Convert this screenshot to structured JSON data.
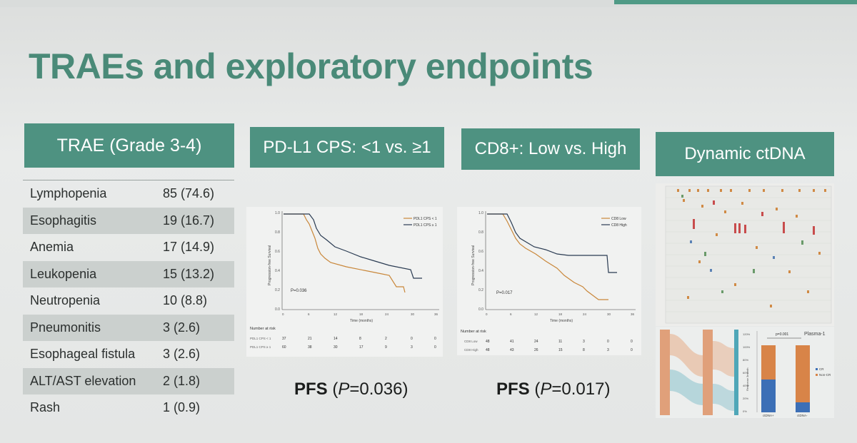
{
  "slide": {
    "title": "TRAEs and exploratory endpoints"
  },
  "headers": {
    "trae": "TRAE (Grade 3-4)",
    "pdl1": "PD-L1 CPS: <1 vs. ≥1",
    "cd8": "CD8+: Low vs. High",
    "ctdna": "Dynamic ctDNA"
  },
  "trae_rows": [
    {
      "name": "Lymphopenia",
      "value": "85 (74.6)"
    },
    {
      "name": "Esophagitis",
      "value": "19 (16.7)"
    },
    {
      "name": "Anemia",
      "value": "17 (14.9)"
    },
    {
      "name": "Leukopenia",
      "value": "15 (13.2)"
    },
    {
      "name": "Neutropenia",
      "value": "10 (8.8)"
    },
    {
      "name": "Pneumonitis",
      "value": "3 (2.6)"
    },
    {
      "name": "Esophageal fistula",
      "value": "3 (2.6)"
    },
    {
      "name": "ALT/AST elevation",
      "value": "2 (1.8)"
    },
    {
      "name": "Rash",
      "value": "1 (0.9)"
    }
  ],
  "km_pdl1": {
    "ylabel": "Progression-free Survival",
    "xlabel": "Time (months)",
    "pvalue": "P=0.036",
    "legend": [
      "PDL1 CPS < 1",
      "PDL1 CPS ≥ 1"
    ],
    "risk_label": "Number at risk",
    "risk_rows": [
      {
        "name": "PDL1 CPS < 1",
        "values": [
          "37",
          "21",
          "14",
          "8",
          "2",
          "0",
          "0"
        ]
      },
      {
        "name": "PDL1 CPS ≥ 1",
        "values": [
          "60",
          "38",
          "30",
          "17",
          "9",
          "3",
          "0"
        ]
      }
    ],
    "xticks": [
      "0",
      "6",
      "12",
      "18",
      "24",
      "30",
      "36"
    ],
    "yticks": [
      "1.0",
      "0.8",
      "0.6",
      "0.4",
      "0.2",
      "0.0"
    ],
    "pfs_label": "PFS",
    "pfs_p": "P",
    "pfs_val": "=0.036)"
  },
  "km_cd8": {
    "ylabel": "Progression-free Survival",
    "xlabel": "Time (months)",
    "pvalue": "P=0.017",
    "legend": [
      "CD8 Low",
      "CD8 High"
    ],
    "risk_label": "Number at risk",
    "risk_rows": [
      {
        "name": "CD8 Low",
        "values": [
          "48",
          "41",
          "24",
          "11",
          "3",
          "0",
          "0"
        ]
      },
      {
        "name": "CD8 High",
        "values": [
          "48",
          "43",
          "26",
          "15",
          "8",
          "3",
          "0"
        ]
      }
    ],
    "xticks": [
      "0",
      "6",
      "12",
      "18",
      "24",
      "30",
      "36"
    ],
    "yticks": [
      "1.0",
      "0.8",
      "0.6",
      "0.4",
      "0.2",
      "0.0"
    ],
    "pfs_label": "PFS",
    "pfs_p": "P",
    "pfs_val": "=0.017)"
  },
  "ctdna_panel": {
    "plasma_label": "Plasma-1",
    "pvalue": "p=0.001",
    "bar_labels": [
      "ctDNA+",
      "ctDNA-"
    ],
    "legend": [
      "CR",
      "Non-CR"
    ],
    "ylabel": "Response 3month",
    "yticks": [
      "120%",
      "100%",
      "80%",
      "60%",
      "40%",
      "20%",
      "0%"
    ]
  },
  "colors": {
    "accent": "#4e9281",
    "title": "#4a8a78",
    "orange": "#c9873a",
    "navy": "#2a3b52"
  }
}
